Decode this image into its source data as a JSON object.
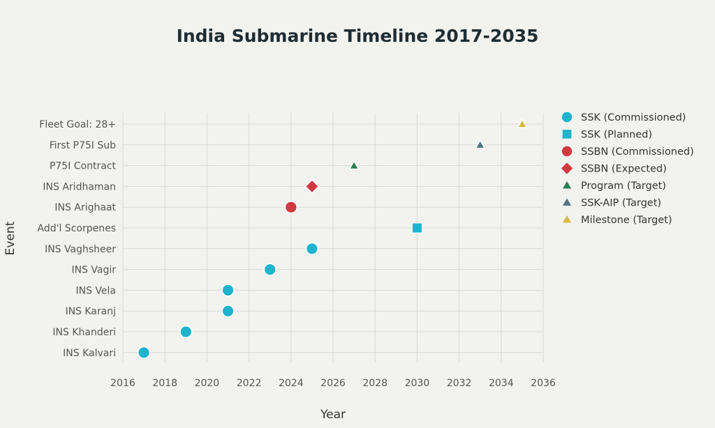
{
  "chart_data": {
    "type": "scatter",
    "title": "India Submarine Timeline 2017-2035",
    "xlabel": "Year",
    "ylabel": "Event",
    "xlim": [
      2016,
      2036
    ],
    "xticks": [
      2016,
      2018,
      2020,
      2022,
      2024,
      2026,
      2028,
      2030,
      2032,
      2034,
      2036
    ],
    "categories": [
      "INS Kalvari",
      "INS Khanderi",
      "INS Karanj",
      "INS Vela",
      "INS Vagir",
      "INS Vaghsheer",
      "Add'l Scorpenes",
      "INS Arighaat",
      "INS Aridhaman",
      "P75I Contract",
      "First P75I Sub",
      "Fleet Goal: 28+"
    ],
    "grid": true,
    "legend_position": "right",
    "series": [
      {
        "name": "SSK (Commissioned)",
        "marker": "circle",
        "color": "#1fb3cc",
        "points": [
          {
            "x": 2017,
            "y": "INS Kalvari"
          },
          {
            "x": 2019,
            "y": "INS Khanderi"
          },
          {
            "x": 2021,
            "y": "INS Karanj"
          },
          {
            "x": 2021,
            "y": "INS Vela"
          },
          {
            "x": 2023,
            "y": "INS Vagir"
          },
          {
            "x": 2025,
            "y": "INS Vaghsheer"
          }
        ]
      },
      {
        "name": "SSK (Planned)",
        "marker": "square",
        "color": "#1fb3cc",
        "points": [
          {
            "x": 2030,
            "y": "Add'l Scorpenes"
          }
        ]
      },
      {
        "name": "SSBN (Commissioned)",
        "marker": "circle",
        "color": "#d0393f",
        "points": [
          {
            "x": 2024,
            "y": "INS Arighaat"
          }
        ]
      },
      {
        "name": "SSBN (Expected)",
        "marker": "diamond",
        "color": "#d0393f",
        "points": [
          {
            "x": 2025,
            "y": "INS Aridhaman"
          }
        ]
      },
      {
        "name": "Program (Target)",
        "marker": "triangle",
        "color": "#2e7d55",
        "points": [
          {
            "x": 2027,
            "y": "P75I Contract"
          }
        ]
      },
      {
        "name": "SSK-AIP (Target)",
        "marker": "triangle",
        "color": "#4f7584",
        "points": [
          {
            "x": 2033,
            "y": "First P75I Sub"
          }
        ]
      },
      {
        "name": "Milestone (Target)",
        "marker": "triangle",
        "color": "#d9b54a",
        "points": [
          {
            "x": 2035,
            "y": "Fleet Goal: 28+"
          }
        ]
      }
    ]
  }
}
